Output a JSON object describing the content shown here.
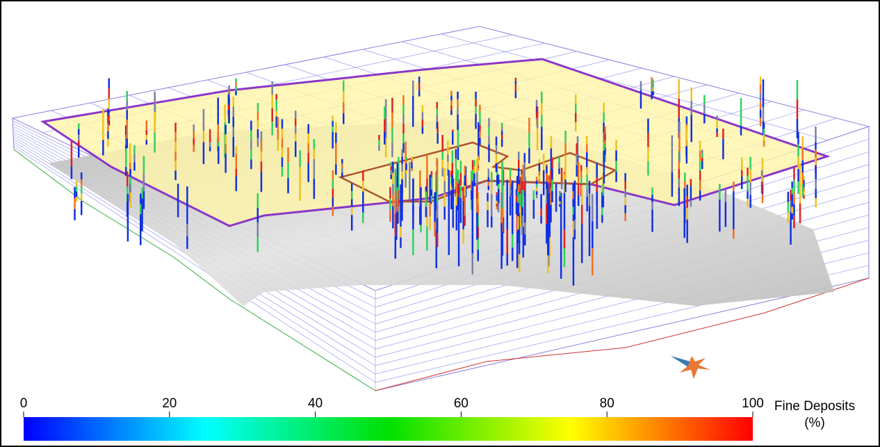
{
  "colorbar": {
    "title": [
      "Fine Deposits",
      "(%)"
    ],
    "range": [
      0,
      100
    ],
    "ticks": [
      0,
      20,
      40,
      60,
      80,
      100
    ],
    "colors": [
      "#0000ff",
      "#00ffff",
      "#00e000",
      "#ffff00",
      "#ff0000"
    ]
  }
}
